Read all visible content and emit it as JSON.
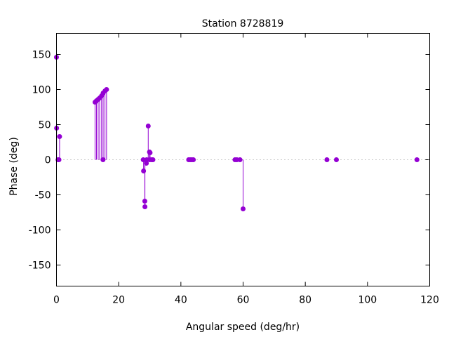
{
  "chart_data": {
    "type": "scatter",
    "style": "impulses with points",
    "title": "Station 8728819",
    "xlabel": "Angular speed (deg/hr)",
    "ylabel": "Phase (deg)",
    "xlim": [
      0,
      120
    ],
    "ylim": [
      -180,
      180
    ],
    "xticks": [
      "0",
      "20",
      "40",
      "60",
      "80",
      "100",
      "120"
    ],
    "yticks": [
      "-150",
      "-100",
      "-50",
      "0",
      "50",
      "100",
      "150"
    ],
    "grid": false,
    "zero_line": "dotted",
    "color": "#9400d3",
    "points": [
      [
        0.0,
        146
      ],
      [
        0.04,
        45
      ],
      [
        0.5,
        0
      ],
      [
        0.8,
        0
      ],
      [
        1.0,
        33
      ],
      [
        12.4,
        82
      ],
      [
        12.85,
        84
      ],
      [
        13.4,
        86
      ],
      [
        13.9,
        88
      ],
      [
        14.5,
        91
      ],
      [
        14.96,
        0
      ],
      [
        15.0,
        95
      ],
      [
        15.6,
        98
      ],
      [
        16.1,
        100
      ],
      [
        27.9,
        0
      ],
      [
        28.0,
        -16
      ],
      [
        28.4,
        -59
      ],
      [
        28.44,
        -67
      ],
      [
        28.9,
        -5
      ],
      [
        29.0,
        0
      ],
      [
        29.5,
        48
      ],
      [
        29.9,
        11
      ],
      [
        30.0,
        0
      ],
      [
        30.1,
        10
      ],
      [
        30.6,
        0
      ],
      [
        31.0,
        0
      ],
      [
        42.5,
        0
      ],
      [
        43.0,
        0
      ],
      [
        43.5,
        0
      ],
      [
        44.0,
        0
      ],
      [
        57.4,
        0
      ],
      [
        58.0,
        0
      ],
      [
        59.0,
        0
      ],
      [
        60.0,
        -70
      ],
      [
        86.95,
        0
      ],
      [
        90.0,
        0
      ],
      [
        115.9,
        0
      ]
    ]
  }
}
